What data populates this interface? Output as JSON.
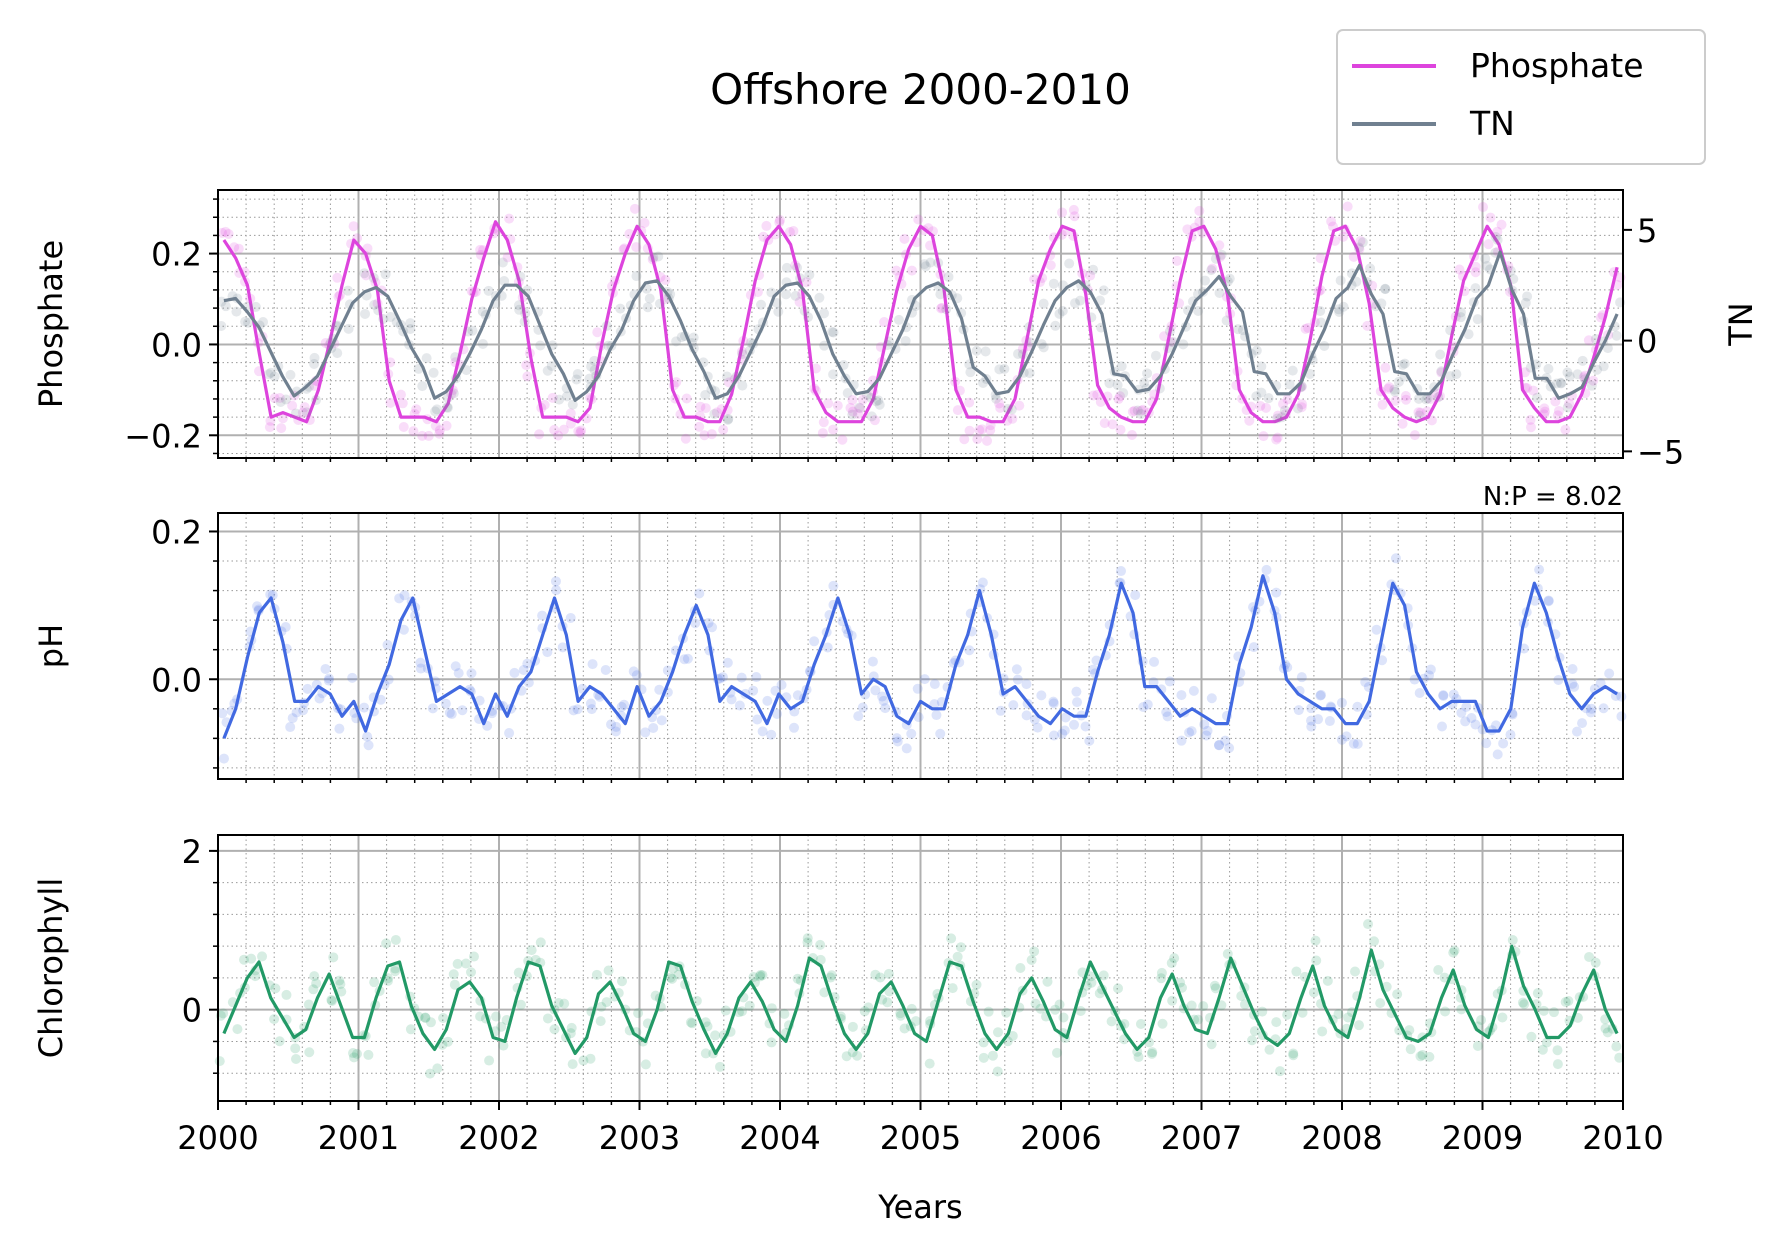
{
  "chart_data": {
    "type": "line",
    "title": "Offshore 2000-2010",
    "xlabel": "Years",
    "xlim": [
      2000,
      2010
    ],
    "x_ticks": [
      "2000",
      "2001",
      "2002",
      "2003",
      "2004",
      "2005",
      "2006",
      "2007",
      "2008",
      "2009",
      "2010"
    ],
    "legend": {
      "placement": "top-right",
      "entries": [
        {
          "label": "Phosphate",
          "color": "#dd44dd"
        },
        {
          "label": "TN",
          "color": "#708090"
        }
      ]
    },
    "annotation": "N:P = 8.02",
    "panels": [
      {
        "name": "phosphate-tn",
        "ylabel": "Phosphate",
        "ylim": [
          -0.25,
          0.34
        ],
        "y_ticks": [
          "−0.2",
          "0.0",
          "0.2"
        ],
        "y_tick_values": [
          -0.2,
          0.0,
          0.2
        ],
        "ylabel_right": "TN",
        "ylim_right": [
          -5.3,
          6.8
        ],
        "y_ticks_right": [
          "−5",
          "0",
          "5"
        ],
        "y_tick_values_right": [
          -5,
          0,
          5
        ],
        "series": [
          {
            "name": "Phosphate",
            "axis": "left",
            "color": "#dd44dd",
            "values": [
              0.23,
              0.19,
              0.13,
              -0.02,
              -0.16,
              -0.15,
              -0.16,
              -0.17,
              -0.1,
              0.01,
              0.13,
              0.23,
              0.2,
              0.12,
              -0.08,
              -0.16,
              -0.16,
              -0.16,
              -0.17,
              -0.13,
              -0.02,
              0.1,
              0.19,
              0.27,
              0.23,
              0.14,
              -0.03,
              -0.16,
              -0.16,
              -0.16,
              -0.17,
              -0.14,
              0.0,
              0.12,
              0.2,
              0.26,
              0.22,
              0.12,
              -0.1,
              -0.16,
              -0.16,
              -0.17,
              -0.17,
              -0.11,
              0.01,
              0.14,
              0.23,
              0.26,
              0.22,
              0.12,
              -0.1,
              -0.15,
              -0.17,
              -0.17,
              -0.17,
              -0.12,
              0.0,
              0.12,
              0.21,
              0.26,
              0.24,
              0.12,
              -0.1,
              -0.16,
              -0.16,
              -0.17,
              -0.17,
              -0.12,
              0.01,
              0.14,
              0.21,
              0.26,
              0.25,
              0.11,
              -0.09,
              -0.14,
              -0.16,
              -0.17,
              -0.17,
              -0.12,
              0.01,
              0.14,
              0.25,
              0.26,
              0.21,
              0.11,
              -0.1,
              -0.15,
              -0.17,
              -0.17,
              -0.16,
              -0.11,
              0.01,
              0.15,
              0.25,
              0.26,
              0.21,
              0.09,
              -0.1,
              -0.14,
              -0.16,
              -0.17,
              -0.16,
              -0.11,
              0.02,
              0.14,
              0.2,
              0.26,
              0.22,
              0.13,
              -0.1,
              -0.14,
              -0.17,
              -0.17,
              -0.16,
              -0.11,
              -0.03,
              0.06,
              0.17
            ]
          },
          {
            "name": "TN",
            "axis": "right",
            "color": "#708090",
            "values": [
              1.8,
              1.9,
              1.3,
              0.6,
              -0.5,
              -1.6,
              -2.5,
              -2.1,
              -1.6,
              -0.5,
              0.6,
              1.7,
              2.2,
              2.4,
              2.0,
              0.9,
              -0.3,
              -1.2,
              -2.6,
              -2.3,
              -1.6,
              -0.6,
              0.5,
              1.8,
              2.5,
              2.5,
              2.0,
              0.7,
              -0.6,
              -1.5,
              -2.7,
              -2.3,
              -1.6,
              -0.4,
              0.5,
              1.8,
              2.6,
              2.7,
              2.0,
              0.9,
              -0.4,
              -1.4,
              -2.6,
              -2.4,
              -1.6,
              -0.5,
              0.6,
              2.0,
              2.5,
              2.6,
              2.0,
              0.9,
              -0.6,
              -1.6,
              -2.4,
              -2.3,
              -1.7,
              -0.6,
              0.5,
              1.9,
              2.4,
              2.6,
              2.2,
              1.0,
              -1.2,
              -1.6,
              -2.4,
              -2.3,
              -1.6,
              -0.5,
              0.7,
              1.8,
              2.4,
              2.7,
              2.2,
              1.2,
              -1.5,
              -1.6,
              -2.3,
              -2.2,
              -1.6,
              -0.6,
              0.6,
              1.8,
              2.3,
              2.9,
              2.0,
              1.3,
              -1.4,
              -1.5,
              -2.4,
              -2.4,
              -1.9,
              -0.6,
              0.5,
              1.9,
              2.4,
              3.4,
              2.1,
              1.2,
              -1.4,
              -1.5,
              -2.4,
              -2.4,
              -1.8,
              -0.6,
              0.5,
              1.9,
              2.5,
              4.0,
              2.3,
              1.2,
              -1.7,
              -1.7,
              -2.6,
              -2.4,
              -2.1,
              -1.0,
              0.0,
              1.2
            ]
          }
        ],
        "scatter_ranges": {
          "left": 0.05,
          "right": 1.2
        }
      },
      {
        "name": "ph",
        "ylabel": "pH",
        "ylim": [
          -0.135,
          0.225
        ],
        "y_ticks": [
          "0.0",
          "0.2"
        ],
        "y_tick_values": [
          0.0,
          0.2
        ],
        "series": [
          {
            "name": "pH",
            "axis": "left",
            "color": "#4169e1",
            "values": [
              -0.08,
              -0.04,
              0.03,
              0.09,
              0.11,
              0.05,
              -0.03,
              -0.03,
              -0.01,
              -0.02,
              -0.05,
              -0.03,
              -0.07,
              -0.02,
              0.02,
              0.08,
              0.11,
              0.04,
              -0.03,
              -0.02,
              -0.01,
              -0.02,
              -0.06,
              -0.02,
              -0.05,
              -0.01,
              0.01,
              0.06,
              0.11,
              0.06,
              -0.03,
              -0.01,
              -0.02,
              -0.04,
              -0.06,
              -0.01,
              -0.05,
              -0.03,
              0.01,
              0.06,
              0.1,
              0.06,
              -0.03,
              -0.01,
              -0.02,
              -0.03,
              -0.06,
              -0.02,
              -0.04,
              -0.03,
              0.02,
              0.06,
              0.11,
              0.06,
              -0.02,
              0.0,
              -0.01,
              -0.05,
              -0.06,
              -0.03,
              -0.04,
              -0.04,
              0.02,
              0.06,
              0.12,
              0.06,
              -0.02,
              -0.01,
              -0.03,
              -0.05,
              -0.06,
              -0.04,
              -0.05,
              -0.05,
              0.01,
              0.06,
              0.13,
              0.09,
              -0.01,
              -0.01,
              -0.03,
              -0.05,
              -0.04,
              -0.05,
              -0.06,
              -0.06,
              0.02,
              0.07,
              0.14,
              0.09,
              0.0,
              -0.02,
              -0.03,
              -0.04,
              -0.04,
              -0.06,
              -0.06,
              -0.03,
              0.05,
              0.13,
              0.1,
              0.01,
              -0.02,
              -0.04,
              -0.03,
              -0.03,
              -0.03,
              -0.07,
              -0.07,
              -0.04,
              0.07,
              0.13,
              0.09,
              0.03,
              -0.02,
              -0.04,
              -0.02,
              -0.01,
              -0.02
            ]
          }
        ],
        "scatter_ranges": {
          "left": 0.035
        }
      },
      {
        "name": "chlorophyll",
        "ylabel": "Chlorophyll",
        "ylim": [
          -1.15,
          2.2
        ],
        "y_ticks": [
          "0",
          "2"
        ],
        "y_tick_values": [
          0,
          2
        ],
        "series": [
          {
            "name": "Chlorophyll",
            "axis": "left",
            "color": "#229966",
            "values": [
              -0.3,
              0.05,
              0.4,
              0.6,
              0.15,
              -0.1,
              -0.35,
              -0.25,
              0.15,
              0.45,
              0.05,
              -0.35,
              -0.35,
              0.15,
              0.55,
              0.6,
              0.05,
              -0.3,
              -0.5,
              -0.25,
              0.25,
              0.35,
              0.15,
              -0.35,
              -0.4,
              0.15,
              0.6,
              0.55,
              0.05,
              -0.25,
              -0.55,
              -0.35,
              0.2,
              0.35,
              0.05,
              -0.3,
              -0.4,
              0.0,
              0.6,
              0.55,
              0.1,
              -0.25,
              -0.55,
              -0.3,
              0.15,
              0.35,
              0.1,
              -0.25,
              -0.4,
              0.05,
              0.65,
              0.55,
              0.1,
              -0.3,
              -0.5,
              -0.3,
              0.2,
              0.35,
              0.05,
              -0.3,
              -0.4,
              0.1,
              0.6,
              0.55,
              0.1,
              -0.3,
              -0.5,
              -0.3,
              0.2,
              0.4,
              0.1,
              -0.25,
              -0.35,
              0.15,
              0.6,
              0.3,
              0.0,
              -0.3,
              -0.5,
              -0.35,
              0.15,
              0.45,
              0.05,
              -0.25,
              -0.3,
              0.15,
              0.65,
              0.3,
              -0.05,
              -0.35,
              -0.45,
              -0.3,
              0.15,
              0.55,
              0.05,
              -0.25,
              -0.35,
              0.15,
              0.75,
              0.25,
              -0.05,
              -0.35,
              -0.4,
              -0.3,
              0.15,
              0.5,
              0.05,
              -0.25,
              -0.35,
              0.15,
              0.8,
              0.3,
              0.0,
              -0.35,
              -0.35,
              -0.2,
              0.2,
              0.5,
              0.0,
              -0.3
            ]
          }
        ],
        "scatter_ranges": {
          "left": 0.35
        }
      }
    ]
  }
}
